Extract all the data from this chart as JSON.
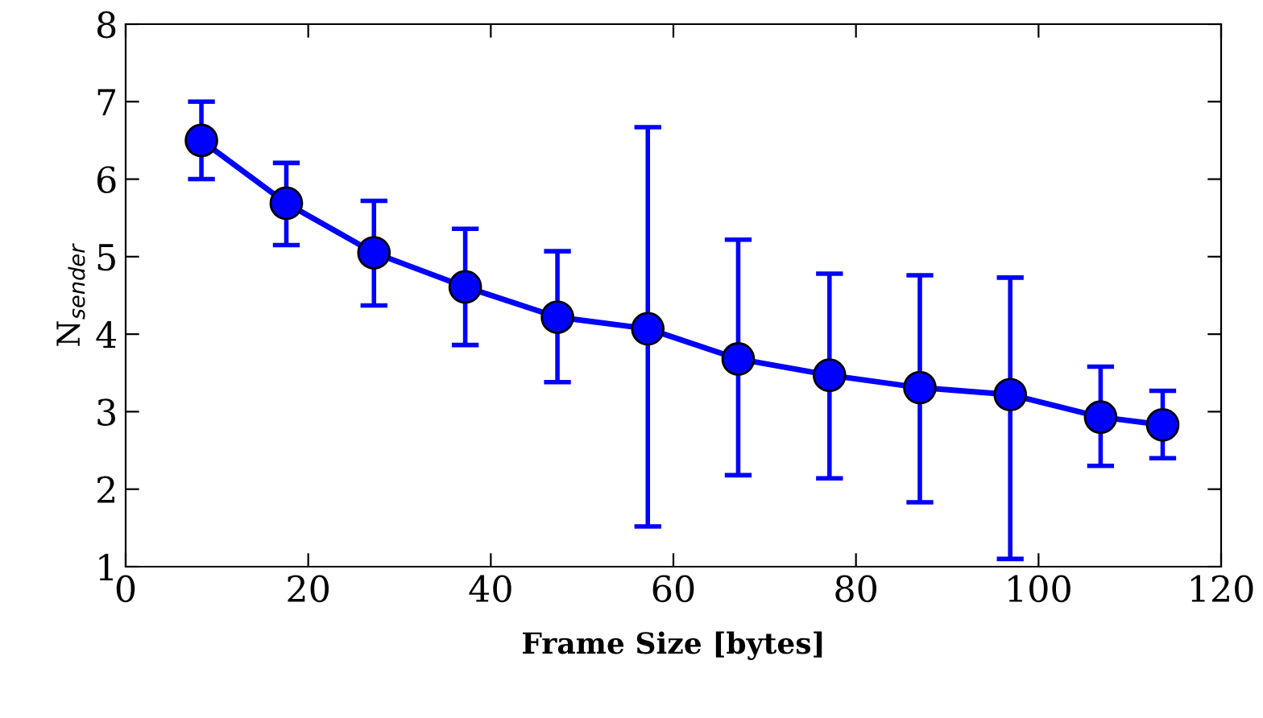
{
  "chart_data": {
    "type": "line",
    "xlabel": "Frame Size [bytes]",
    "ylabel": "N$_{sender}$",
    "x": [
      8.3,
      17.6,
      27.2,
      37.2,
      47.3,
      57.2,
      67.1,
      77.1,
      87.0,
      96.9,
      106.8,
      113.6
    ],
    "series": [
      {
        "color": "#0000ff",
        "values": [
          6.5,
          5.69,
          5.05,
          4.61,
          4.22,
          4.07,
          3.68,
          3.47,
          3.31,
          3.22,
          2.93,
          2.83
        ],
        "errors": [
          [
            6.0,
            7.0
          ],
          [
            5.15,
            6.21
          ],
          [
            4.37,
            5.72
          ],
          [
            3.86,
            5.36
          ],
          [
            3.38,
            5.07
          ],
          [
            1.52,
            6.67
          ],
          [
            2.18,
            5.22
          ],
          [
            2.14,
            4.78
          ],
          [
            1.83,
            4.76
          ],
          [
            1.1,
            4.73
          ],
          [
            2.3,
            3.58
          ],
          [
            2.4,
            3.27
          ]
        ]
      }
    ],
    "xlim": [
      0,
      120
    ],
    "xticks": [
      0,
      20,
      40,
      60,
      80,
      100,
      120
    ],
    "ylim": [
      1,
      8
    ],
    "yticks": [
      1,
      2,
      3,
      4,
      5,
      6,
      7,
      8
    ],
    "marker": "circle",
    "line_style": "solid",
    "grid": false,
    "legend": false
  }
}
